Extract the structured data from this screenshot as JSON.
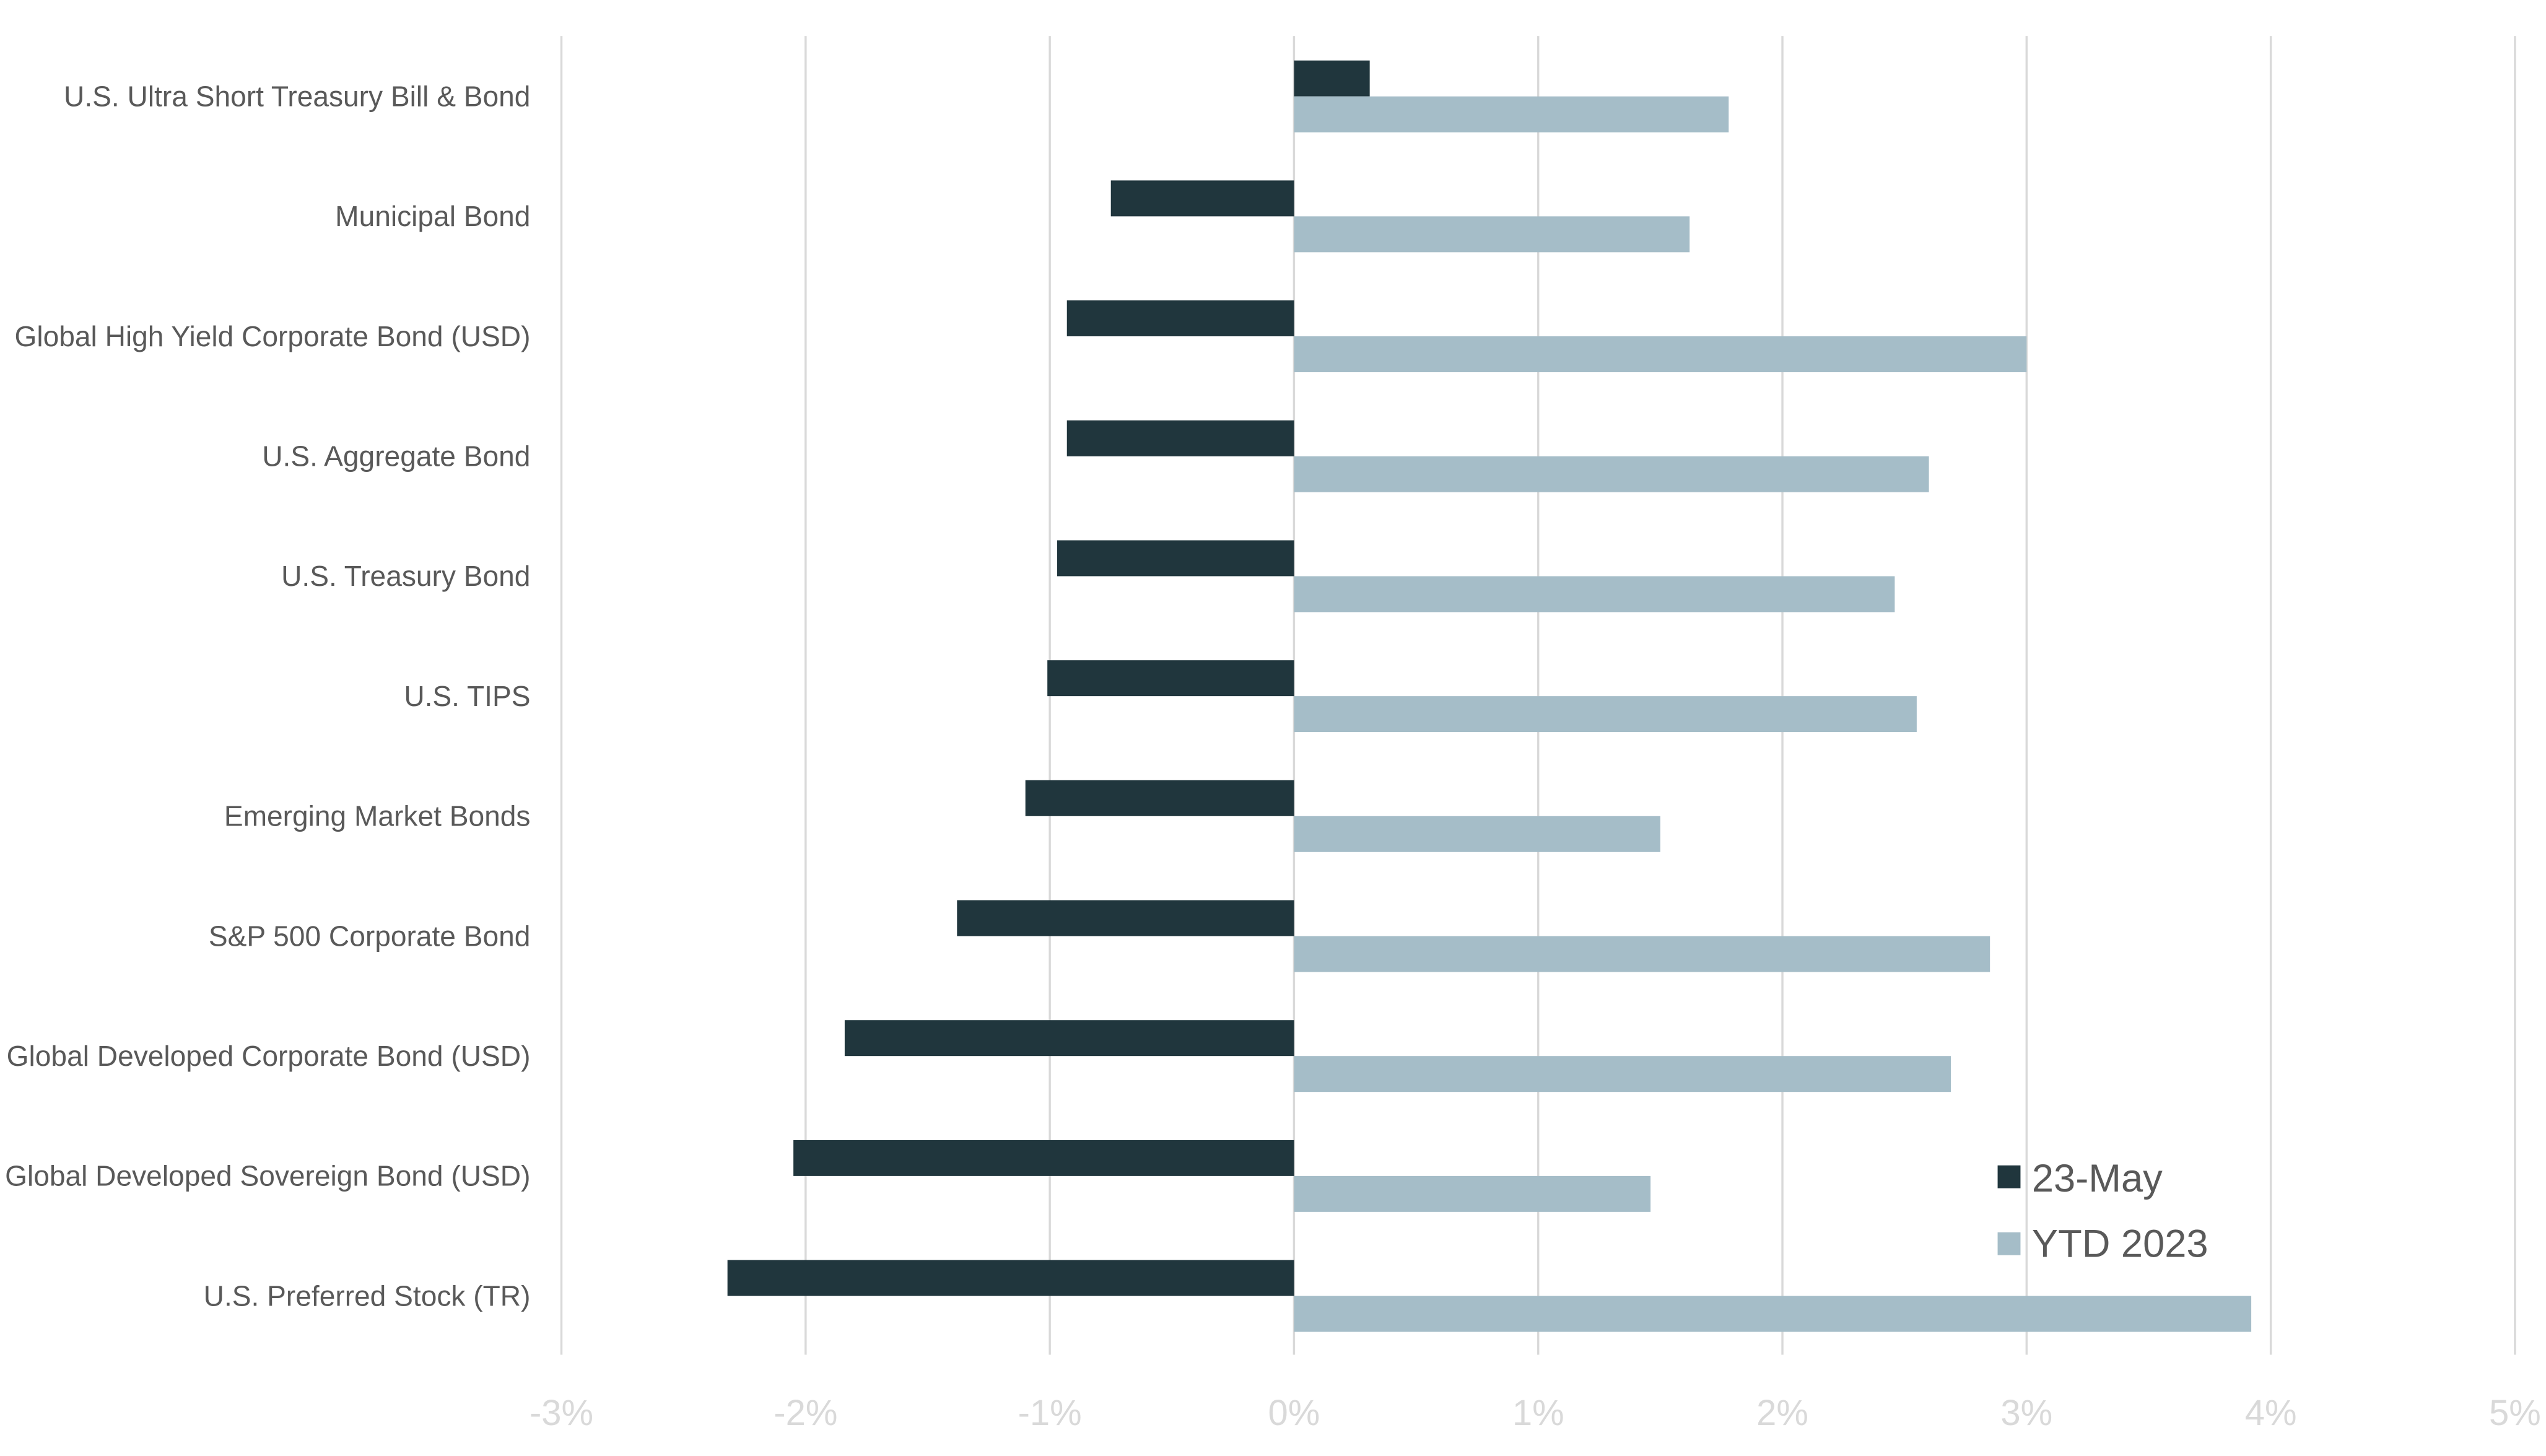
{
  "chart_data": {
    "type": "bar",
    "orientation": "horizontal",
    "categories": [
      "U.S. Ultra Short Treasury Bill & Bond",
      "Municipal Bond",
      "Global High Yield Corporate Bond (USD)",
      "U.S. Aggregate Bond",
      "U.S. Treasury Bond",
      "U.S. TIPS",
      "Emerging Market Bonds",
      "S&P 500 Corporate Bond",
      "Global Developed Corporate Bond (USD)",
      "Global Developed Sovereign Bond (USD)",
      "U.S. Preferred Stock (TR)"
    ],
    "series": [
      {
        "name": "23-May",
        "color": "#20363d",
        "values": [
          0.31,
          -0.75,
          -0.93,
          -0.93,
          -0.97,
          -1.01,
          -1.1,
          -1.38,
          -1.84,
          -2.05,
          -2.32
        ]
      },
      {
        "name": "YTD 2023",
        "color": "#a5bdc8",
        "values": [
          1.78,
          1.62,
          3.0,
          2.6,
          2.46,
          2.55,
          1.5,
          2.85,
          2.69,
          1.46,
          3.92
        ]
      }
    ],
    "xlim": [
      -3,
      5
    ],
    "xticks": [
      "-3%",
      "-2%",
      "-1%",
      "0%",
      "1%",
      "2%",
      "3%",
      "4%",
      "5%"
    ],
    "value_unit": "%",
    "grid": true,
    "legend_position": "bottom-right",
    "title": "",
    "xlabel": "",
    "ylabel": ""
  }
}
